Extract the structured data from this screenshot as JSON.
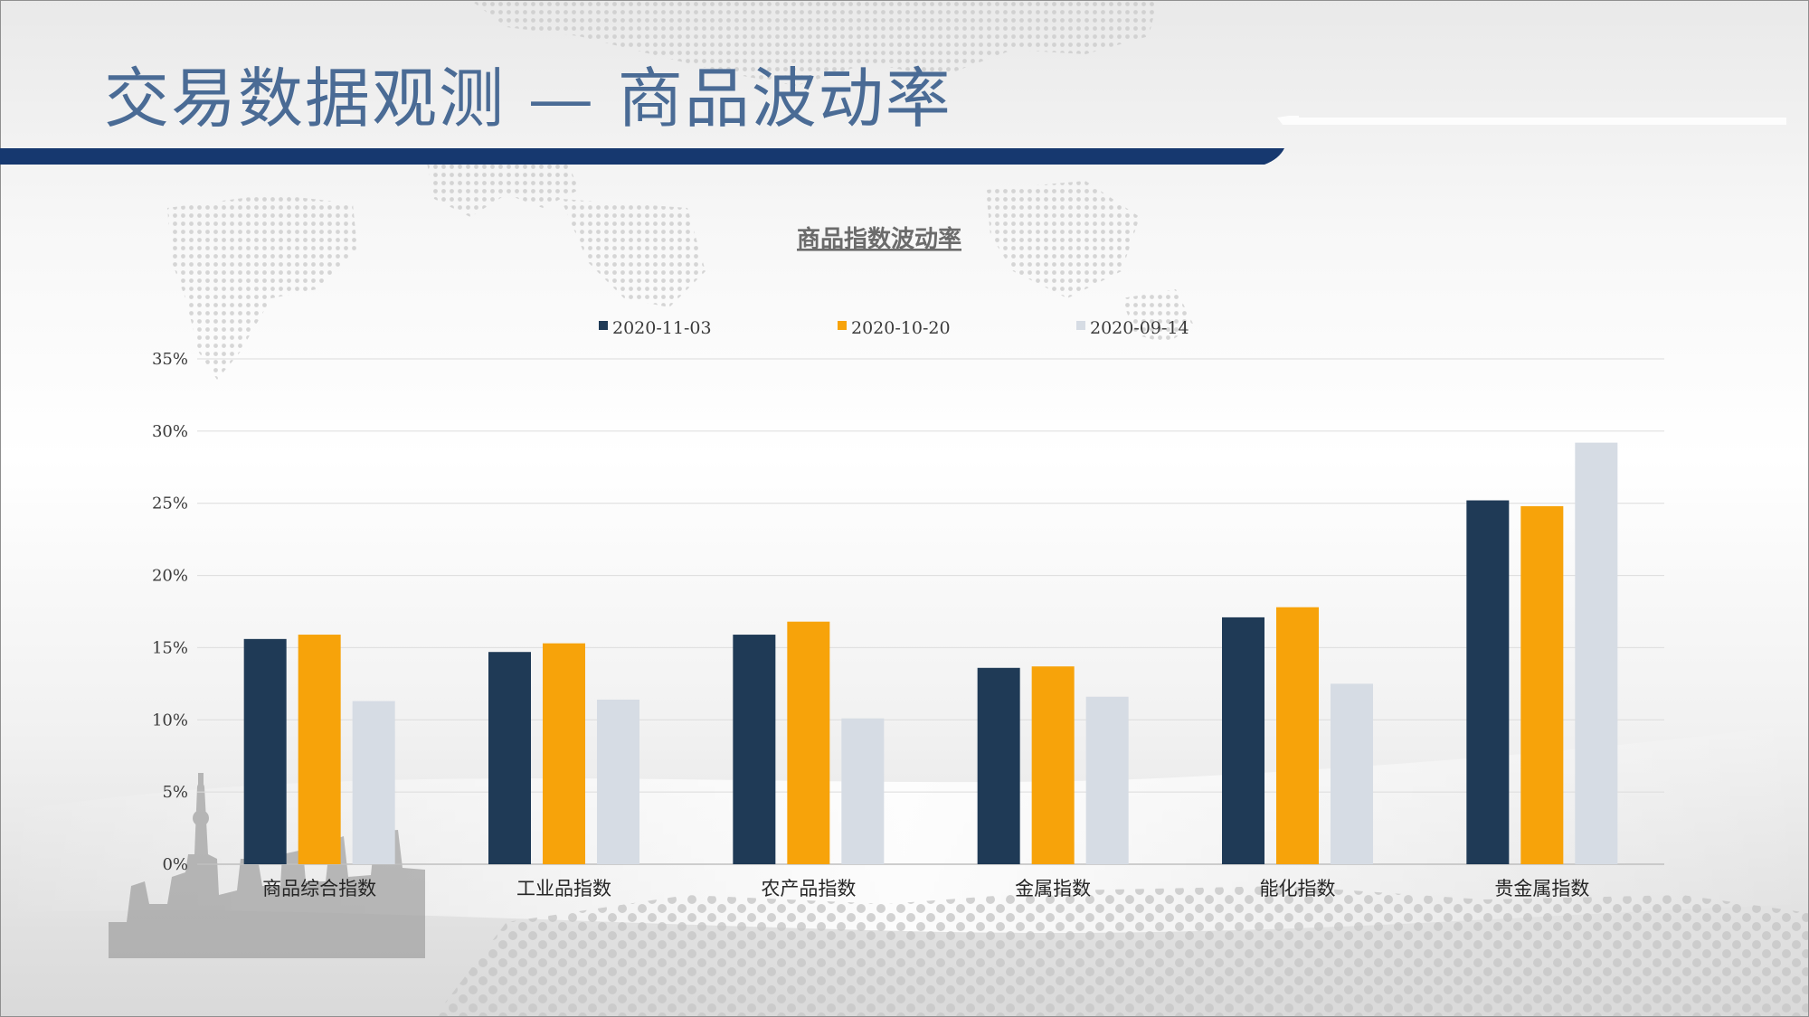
{
  "slide": {
    "title": "交易数据观测 — 商品波动率"
  },
  "colors": {
    "title": "#4a6b95",
    "header_bar": "#16386f",
    "series": [
      "#1f3a56",
      "#f7a30a",
      "#d6dce4"
    ]
  },
  "chart_data": {
    "type": "bar",
    "title": "商品指数波动率",
    "xlabel": "",
    "ylabel": "",
    "categories": [
      "商品综合指数",
      "工业品指数",
      "农产品指数",
      "金属指数",
      "能化指数",
      "贵金属指数"
    ],
    "series": [
      {
        "name": "2020-11-03",
        "values": [
          0.156,
          0.147,
          0.159,
          0.136,
          0.171,
          0.252
        ]
      },
      {
        "name": "2020-10-20",
        "values": [
          0.159,
          0.153,
          0.168,
          0.137,
          0.178,
          0.248
        ]
      },
      {
        "name": "2020-09-14",
        "values": [
          0.113,
          0.114,
          0.101,
          0.116,
          0.125,
          0.292
        ]
      }
    ],
    "ylim": [
      0,
      0.35
    ],
    "yticks": [
      0,
      0.05,
      0.1,
      0.15,
      0.2,
      0.25,
      0.3,
      0.35
    ],
    "ytick_labels": [
      "0%",
      "5%",
      "10%",
      "15%",
      "20%",
      "25%",
      "30%",
      "35%"
    ],
    "grid": true,
    "legend_position": "top-center"
  }
}
